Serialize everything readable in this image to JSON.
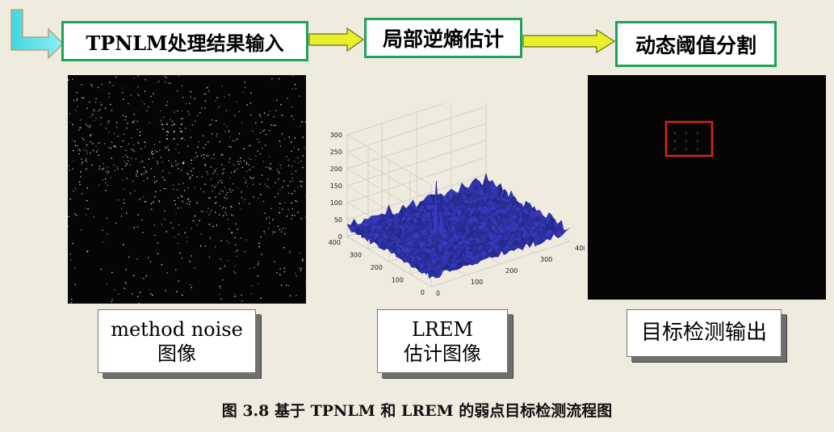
{
  "steps": [
    "TPNLM处理结果输入",
    "局部逆熵估计",
    "动态阈值分割"
  ],
  "captions": {
    "left_line1": "method noise",
    "left_line2": "图像",
    "middle_line1": "LREM",
    "middle_line2": "估计图像",
    "right": "目标检测输出"
  },
  "figure_caption": "图 3.8 基于 TPNLM 和 LREM 的弱点目标检测流程图",
  "plot_axes": {
    "z_ticks": [
      "0",
      "50",
      "100",
      "150",
      "200",
      "250",
      "300"
    ],
    "x_ticks": [
      "0",
      "100",
      "200",
      "300",
      "400"
    ],
    "y_ticks": [
      "0",
      "100",
      "200",
      "300",
      "400"
    ]
  },
  "colors": {
    "box_border": "#1fa35a",
    "arrow_fill": "#e8f02a",
    "corner_arrow": "#3fd6e0",
    "surface": "#2b2f9e",
    "detection_box": "#e0201c",
    "background": "#efebdf"
  },
  "icons": {
    "corner_arrow": "l-shaped-arrow-icon",
    "flow_arrow": "right-arrow-icon"
  }
}
